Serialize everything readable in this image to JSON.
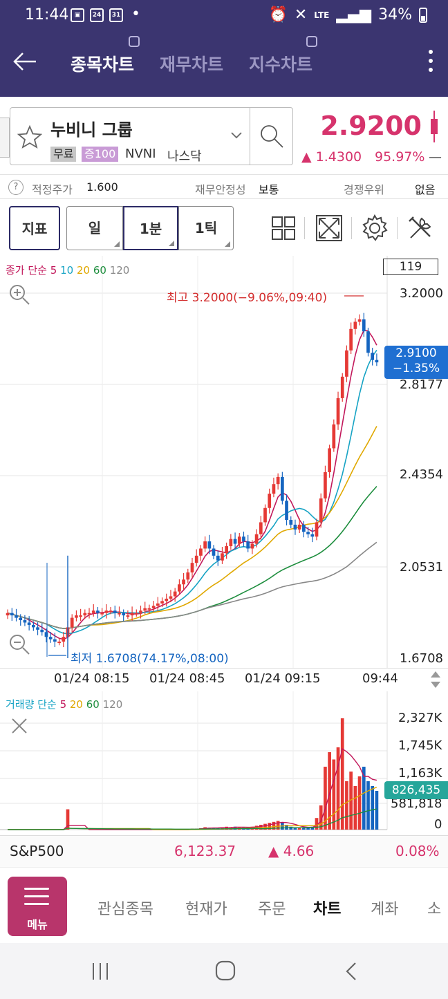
{
  "status": {
    "time": "11:44",
    "icon24": "24",
    "icon31": "31",
    "dot": "•",
    "network": "LTE",
    "battery": "34%"
  },
  "header": {
    "tabs": [
      {
        "label": "종목차트"
      },
      {
        "label": "재무차트"
      },
      {
        "label": "지수차트"
      }
    ]
  },
  "stock": {
    "name": "누비니 그룹",
    "badge_free": "무료",
    "badge_margin": "증100",
    "ticker": "NVNI",
    "market": "나스닥",
    "price": "2.9200",
    "change": "▲ 1.4300",
    "change_pct": "95.97%",
    "change_dash": "—"
  },
  "info": {
    "fair_price_label": "적정주가",
    "fair_price_value": "1.600",
    "stability_label": "재무안정성",
    "stability_value": "보통",
    "competition_label": "경쟁우위",
    "competition_value": "없음"
  },
  "toolbar": {
    "indicator": "지표",
    "day": "일",
    "min1": "1분",
    "tick1": "1틱"
  },
  "chart_legend": {
    "prefix": "종가 단순",
    "ma5": "5",
    "ma10": "10",
    "ma20": "20",
    "ma60": "60",
    "ma120": "120"
  },
  "volume_legend": {
    "prefix": "거래량 단순",
    "ma5": "5",
    "ma20": "20",
    "ma60": "60",
    "ma120": "120"
  },
  "chart_data": {
    "type": "candlestick",
    "count_box": "119",
    "y_ticks": [
      "3.2000",
      "2.8177",
      "2.4354",
      "2.0531",
      "1.6708"
    ],
    "ylim": [
      1.6708,
      3.2
    ],
    "x_ticks": [
      "01/24 08:15",
      "01/24 08:45",
      "01/24 09:15",
      "09:44"
    ],
    "high_annotation": "최고 3.2000(−9.06%,09:40)",
    "low_annotation": "최저 1.6708(74.17%,08:00)",
    "current_price": "2.9100",
    "current_pct": "−1.35%",
    "close_series": [
      1.86,
      1.85,
      1.84,
      1.83,
      1.82,
      1.81,
      1.8,
      1.79,
      1.78,
      1.76,
      1.75,
      1.74,
      1.74,
      1.76,
      1.8,
      1.84,
      1.85,
      1.85,
      1.86,
      1.86,
      1.87,
      1.86,
      1.86,
      1.87,
      1.87,
      1.86,
      1.86,
      1.85,
      1.85,
      1.86,
      1.86,
      1.87,
      1.88,
      1.88,
      1.89,
      1.9,
      1.91,
      1.92,
      1.93,
      1.95,
      1.98,
      2.0,
      2.03,
      2.07,
      2.1,
      2.13,
      2.16,
      2.13,
      2.1,
      2.08,
      2.11,
      2.14,
      2.17,
      2.15,
      2.18,
      2.16,
      2.13,
      2.15,
      2.19,
      2.24,
      2.3,
      2.36,
      2.4,
      2.43,
      2.33,
      2.25,
      2.23,
      2.21,
      2.23,
      2.2,
      2.19,
      2.18,
      2.24,
      2.34,
      2.45,
      2.55,
      2.65,
      2.76,
      2.85,
      2.96,
      3.05,
      3.08,
      3.09,
      3.04,
      2.95,
      2.92,
      2.91
    ],
    "volume_yticks": [
      "2,327K",
      "1,745K",
      "1,163K",
      "581,818",
      "0"
    ],
    "volume_current": "826,435",
    "volume_series": [
      0,
      0,
      0,
      0,
      0,
      0,
      0,
      0,
      0,
      0,
      0,
      0,
      0,
      0,
      0.42,
      0,
      0,
      0,
      0,
      0,
      0,
      0,
      0,
      0,
      0,
      0,
      0,
      0,
      0,
      0,
      0,
      0,
      0,
      0,
      0,
      0,
      0,
      0,
      0,
      0,
      0,
      0,
      0,
      0.02,
      0.02,
      0.03,
      0.05,
      0.04,
      0.03,
      0.03,
      0.05,
      0.06,
      0.05,
      0.06,
      0.04,
      0.04,
      0.05,
      0.06,
      0.08,
      0.1,
      0.12,
      0.14,
      0.16,
      0.18,
      0.15,
      0.1,
      0.06,
      0.05,
      0.04,
      0.05,
      0.04,
      0.06,
      0.24,
      0.5,
      1.3,
      1.6,
      1.45,
      1.7,
      2.3,
      1.0,
      1.2,
      0.9,
      1.1,
      1.3,
      1.0,
      0.9,
      0.8
    ]
  },
  "ticker": {
    "name": "S&P500",
    "value": "6,123.37",
    "change": "▲ 4.66",
    "pct": "0.08%"
  },
  "bottom_nav": {
    "menu_label": "메뉴",
    "items": [
      {
        "label": "관심종목"
      },
      {
        "label": "현재가"
      },
      {
        "label": "주문"
      },
      {
        "label": "차트"
      },
      {
        "label": "계좌"
      },
      {
        "label": "소"
      }
    ]
  },
  "colors": {
    "header_bg": "#3b3570",
    "up": "#d6336c",
    "down": "#1565c0",
    "accent": "#b8356b"
  }
}
